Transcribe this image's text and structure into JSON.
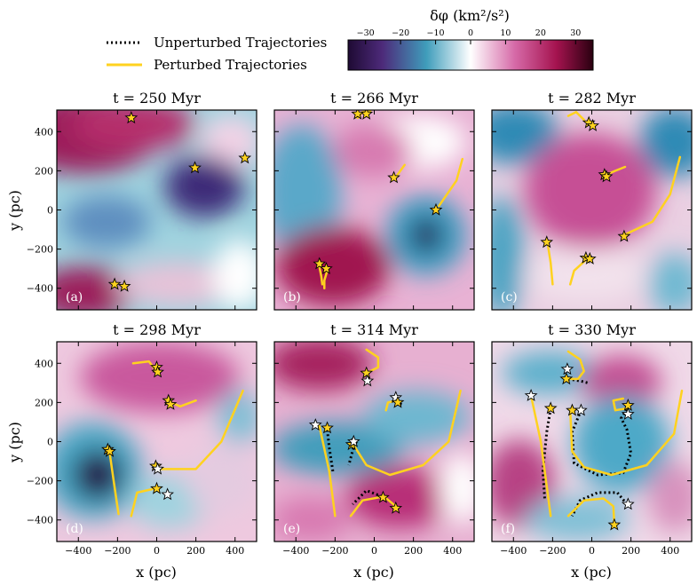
{
  "figure": {
    "legend": {
      "unperturbed": "Unperturbed Trajectories",
      "perturbed": "Perturbed Trajectories"
    },
    "colorbar": {
      "label": "δφ (km²/s²)",
      "ticks": [
        "−30",
        "−20",
        "−10",
        "0",
        "10",
        "20",
        "30"
      ],
      "tick_values": [
        -30,
        -20,
        -10,
        0,
        10,
        20,
        30
      ],
      "range": [
        -35,
        35
      ],
      "colors": [
        "#1e0a33",
        "#4d2a7a",
        "#3f9dbb",
        "#ffffff",
        "#d66aa8",
        "#a5134f",
        "#2a0010"
      ]
    },
    "xlabel": "x (pc)",
    "ylabel": "y (pc)",
    "xticks": [
      "−400",
      "−200",
      "0",
      "200",
      "400"
    ],
    "yticks": [
      "−400",
      "−200",
      "0",
      "200",
      "400"
    ],
    "unperturbed_color": "#000000",
    "perturbed_color": "#ffd21f"
  },
  "chart_data": [
    {
      "type": "heatmap",
      "label": "(a)",
      "title": "t = 250 Myr",
      "xlim": [
        -510,
        510
      ],
      "ylim": [
        -510,
        510
      ],
      "stars": [
        [
          -130,
          470
        ],
        [
          195,
          215
        ],
        [
          450,
          265
        ],
        [
          -215,
          -380
        ],
        [
          -165,
          -390
        ]
      ]
    },
    {
      "type": "heatmap",
      "label": "(b)",
      "title": "t = 266 Myr",
      "xlim": [
        -510,
        510
      ],
      "ylim": [
        -510,
        510
      ],
      "stars": [
        [
          -40,
          490
        ],
        [
          -85,
          490
        ],
        [
          100,
          165
        ],
        [
          315,
          0
        ],
        [
          -280,
          -275
        ],
        [
          -245,
          -300
        ]
      ]
    },
    {
      "type": "heatmap",
      "label": "(c)",
      "title": "t = 282 Myr",
      "xlim": [
        -510,
        510
      ],
      "ylim": [
        -510,
        510
      ],
      "stars": [
        [
          -15,
          445
        ],
        [
          5,
          430
        ],
        [
          65,
          180
        ],
        [
          75,
          170
        ],
        [
          165,
          -135
        ],
        [
          -230,
          -165
        ],
        [
          -30,
          -245
        ],
        [
          -10,
          -250
        ]
      ]
    },
    {
      "type": "heatmap",
      "label": "(d)",
      "title": "t = 298 Myr",
      "xlim": [
        -510,
        510
      ],
      "ylim": [
        -510,
        510
      ],
      "stars": [
        [
          0,
          380
        ],
        [
          5,
          355
        ],
        [
          60,
          210
        ],
        [
          70,
          190
        ],
        [
          -250,
          -40
        ],
        [
          -240,
          -50
        ],
        [
          -5,
          -125
        ],
        [
          5,
          -140
        ],
        [
          0,
          -240
        ],
        [
          55,
          -270
        ]
      ]
    },
    {
      "type": "heatmap",
      "label": "(e)",
      "title": "t = 314 Myr",
      "xlim": [
        -510,
        510
      ],
      "ylim": [
        -510,
        510
      ],
      "stars": [
        [
          -40,
          350
        ],
        [
          -35,
          310
        ],
        [
          110,
          225
        ],
        [
          120,
          200
        ],
        [
          -300,
          85
        ],
        [
          -240,
          70
        ],
        [
          -115,
          -15
        ],
        [
          -105,
          0
        ],
        [
          45,
          -285
        ],
        [
          110,
          -340
        ]
      ]
    },
    {
      "type": "heatmap",
      "label": "(f)",
      "title": "t = 330 Myr",
      "xlim": [
        -510,
        510
      ],
      "ylim": [
        -510,
        510
      ],
      "stars": [
        [
          -125,
          370
        ],
        [
          -130,
          320
        ],
        [
          -310,
          235
        ],
        [
          -210,
          170
        ],
        [
          -100,
          160
        ],
        [
          -55,
          160
        ],
        [
          185,
          185
        ],
        [
          185,
          140
        ],
        [
          185,
          -320
        ],
        [
          115,
          -425
        ]
      ]
    }
  ]
}
